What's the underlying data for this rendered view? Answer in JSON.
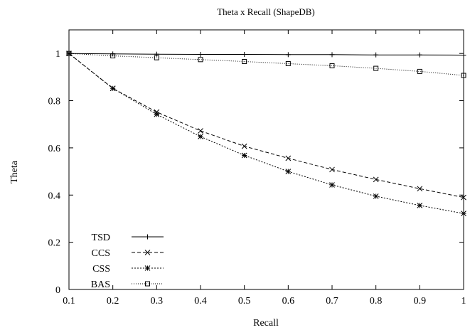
{
  "chart_data": {
    "type": "line",
    "title": "Theta x Recall (ShapeDB)",
    "xlabel": "Recall",
    "ylabel": "Theta",
    "xlim": [
      0.1,
      1
    ],
    "ylim": [
      0,
      1.1
    ],
    "x_ticks": [
      "0.1",
      "0.2",
      "0.3",
      "0.4",
      "0.5",
      "0.6",
      "0.7",
      "0.8",
      "0.9",
      "1"
    ],
    "y_ticks": [
      "0",
      "0.2",
      "0.4",
      "0.6",
      "0.8",
      "1"
    ],
    "x": [
      0.1,
      0.2,
      0.3,
      0.4,
      0.5,
      0.6,
      0.7,
      0.8,
      0.9,
      1.0
    ],
    "grid": false,
    "legend_position": "bottom-left",
    "series": [
      {
        "name": "TSD",
        "marker": "plus",
        "dash": "solid",
        "values": [
          1.0,
          0.998,
          0.997,
          0.996,
          0.996,
          0.995,
          0.995,
          0.994,
          0.994,
          0.993
        ]
      },
      {
        "name": "CCS",
        "marker": "cross",
        "dash": "dashed",
        "values": [
          1.0,
          0.852,
          0.752,
          0.672,
          0.607,
          0.556,
          0.508,
          0.466,
          0.427,
          0.39
        ]
      },
      {
        "name": "CSS",
        "marker": "star",
        "dash": "dotted-dense",
        "values": [
          1.0,
          0.852,
          0.742,
          0.648,
          0.568,
          0.5,
          0.443,
          0.395,
          0.356,
          0.322
        ]
      },
      {
        "name": "BAS",
        "marker": "square",
        "dash": "dotted",
        "values": [
          1.0,
          0.99,
          0.982,
          0.974,
          0.966,
          0.957,
          0.948,
          0.937,
          0.924,
          0.907
        ]
      }
    ]
  }
}
